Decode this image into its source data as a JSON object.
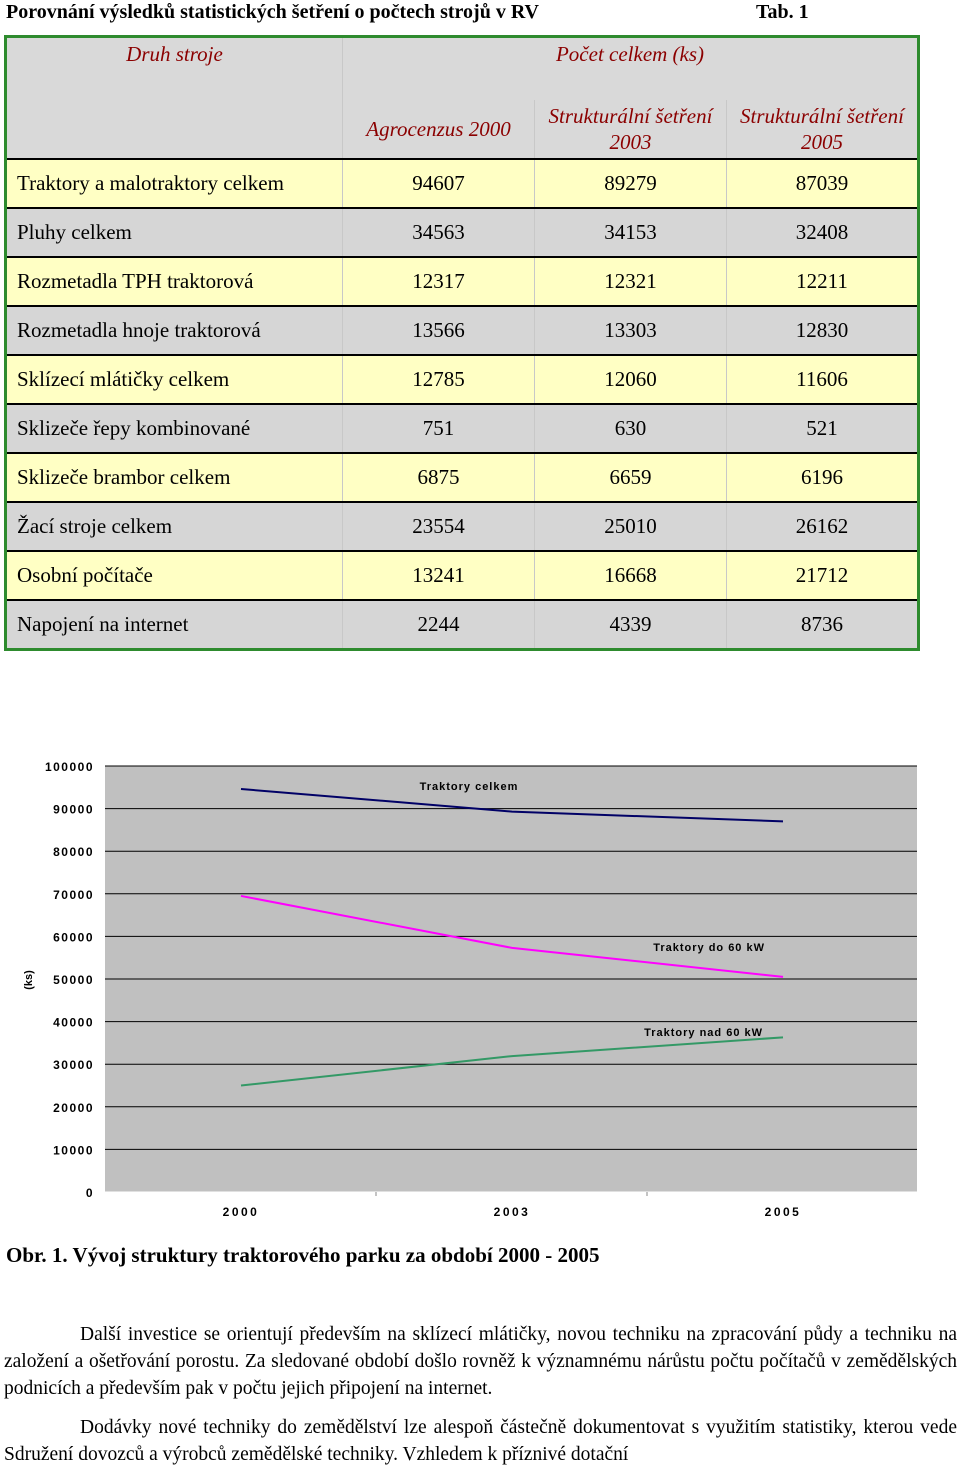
{
  "document": {
    "title": "Porovnání výsledků statistických šetření o počtech strojů v RV",
    "table_label": "Tab. 1"
  },
  "table": {
    "header_col0": "Druh stroje",
    "header_group": "Počet celkem (ks)",
    "header_cols": [
      "Agrocenzus 2000",
      "Strukturální šetření 2003",
      "Strukturální šetření 2005"
    ],
    "rows": [
      {
        "name": "Traktory a malotraktory celkem",
        "values": [
          "94607",
          "89279",
          "87039"
        ]
      },
      {
        "name": "Pluhy celkem",
        "values": [
          "34563",
          "34153",
          "32408"
        ]
      },
      {
        "name": "Rozmetadla TPH traktorová",
        "values": [
          "12317",
          "12321",
          "12211"
        ]
      },
      {
        "name": "Rozmetadla hnoje traktorová",
        "values": [
          "13566",
          "13303",
          "12830"
        ]
      },
      {
        "name": "Sklízecí mlátičky celkem",
        "values": [
          "12785",
          "12060",
          "11606"
        ]
      },
      {
        "name": "Sklizeče řepy kombinované",
        "values": [
          "751",
          "630",
          "521"
        ]
      },
      {
        "name": "Sklizeče brambor celkem",
        "values": [
          "6875",
          "6659",
          "6196"
        ]
      },
      {
        "name": "Žací stroje celkem",
        "values": [
          "23554",
          "25010",
          "26162"
        ]
      },
      {
        "name": "Osobní počítače",
        "values": [
          "13241",
          "16668",
          "21712"
        ]
      },
      {
        "name": "Napojení na internet",
        "values": [
          "2244",
          "4339",
          "8736"
        ]
      }
    ]
  },
  "chart_data": {
    "type": "line",
    "x": [
      "2000",
      "2003",
      "2005"
    ],
    "ylabel": "(ks)",
    "ylim": [
      0,
      100000
    ],
    "yticks": [
      "0",
      "10000",
      "20000",
      "30000",
      "40000",
      "50000",
      "60000",
      "70000",
      "80000",
      "90000",
      "100000"
    ],
    "series": [
      {
        "name": "Traktory celkem",
        "values": [
          94600,
          89300,
          87000
        ],
        "color": "#000066"
      },
      {
        "name": "Traktory do 60 kW",
        "values": [
          69500,
          57300,
          50500
        ],
        "color": "#ff00ff"
      },
      {
        "name": "Traktory nad 60 kW",
        "values": [
          25000,
          31900,
          36300
        ],
        "color": "#339966"
      }
    ],
    "grid": true
  },
  "caption": "Obr. 1. Vývoj struktury traktorového parku za období 2000 - 2005",
  "paragraphs": [
    "Další investice se orientují především na sklízecí mlátičky, novou techniku na zpracování půdy a techniku na založení  a ošetřování porostu.  Za sledované období došlo rovněž k významnému nárůstu počtu počítačů v zemědělských podnicích a především pak v počtu jejich připojení na internet.",
    "Dodávky nové techniky do zemědělství lze alespoň částečně dokumentovat s využitím statistiky, kterou vede Sdružení dovozců a výrobců zemědělské techniky. Vzhledem k příznivé dotační"
  ]
}
